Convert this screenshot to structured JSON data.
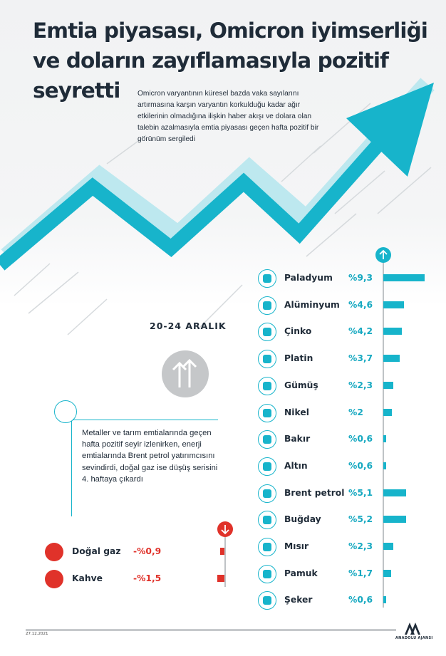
{
  "title": "Emtia piyasası, Omicron iyimserliği ve doların zayıflamasıyla pozitif seyretti",
  "intro": "Omicron varyantının küresel bazda vaka sayılarını artırmasına karşın varyantın korkulduğu kadar ağır etkilerinin olmadığına ilişkin haber akışı ve dolara olan talebin azalmasıyla emtia piyasası geçen hafta pozitif bir görünüm sergiledi",
  "date_range": "20-24 ARALIK",
  "description": "Metaller ve tarım emtialarında geçen hafta pozitif seyir izlenirken, enerji emtialarında Brent petrol yatırımcısını sevindirdi, doğal gaz ise düşüş serisini 4. haftaya çıkardı",
  "colors": {
    "accent": "#17b4cb",
    "negative": "#e0322a",
    "text": "#1f2b38"
  },
  "gainers": [
    {
      "name": "Paladyum",
      "value": "%9,3",
      "change": 9.3,
      "icon": "ingots-icon"
    },
    {
      "name": "Alüminyum",
      "value": "%4,6",
      "change": 4.6,
      "icon": "aluminium-icon"
    },
    {
      "name": "Çinko",
      "value": "%4,2",
      "change": 4.2,
      "icon": "ingots-icon"
    },
    {
      "name": "Platin",
      "value": "%3,7",
      "change": 3.7,
      "icon": "platinum-icon"
    },
    {
      "name": "Gümüş",
      "value": "%2,3",
      "change": 2.3,
      "icon": "silver-icon"
    },
    {
      "name": "Nikel",
      "value": "%2",
      "change": 2.0,
      "icon": "ingots-icon"
    },
    {
      "name": "Bakır",
      "value": "%0,6",
      "change": 0.6,
      "icon": "copper-coil-icon"
    },
    {
      "name": "Altın",
      "value": "%0,6",
      "change": 0.6,
      "icon": "gold-bar-icon"
    },
    {
      "name": "Brent petrol",
      "value": "%5,1",
      "change": 5.1,
      "icon": "oil-can-icon"
    },
    {
      "name": "Buğday",
      "value": "%5,2",
      "change": 5.2,
      "icon": "wheat-icon"
    },
    {
      "name": "Mısır",
      "value": "%2,3",
      "change": 2.3,
      "icon": "corn-icon"
    },
    {
      "name": "Pamuk",
      "value": "%1,7",
      "change": 1.7,
      "icon": "cotton-icon"
    },
    {
      "name": "Şeker",
      "value": "%0,6",
      "change": 0.6,
      "icon": "sugar-icon"
    }
  ],
  "losers": [
    {
      "name": "Doğal gaz",
      "value": "-%0,9",
      "change": -0.9,
      "icon": "flame-icon"
    },
    {
      "name": "Kahve",
      "value": "-%1,5",
      "change": -1.5,
      "icon": "coffee-bean-icon"
    }
  ],
  "footer": {
    "date": "27.12.2021",
    "agency": "ANADOLU AJANSI"
  }
}
